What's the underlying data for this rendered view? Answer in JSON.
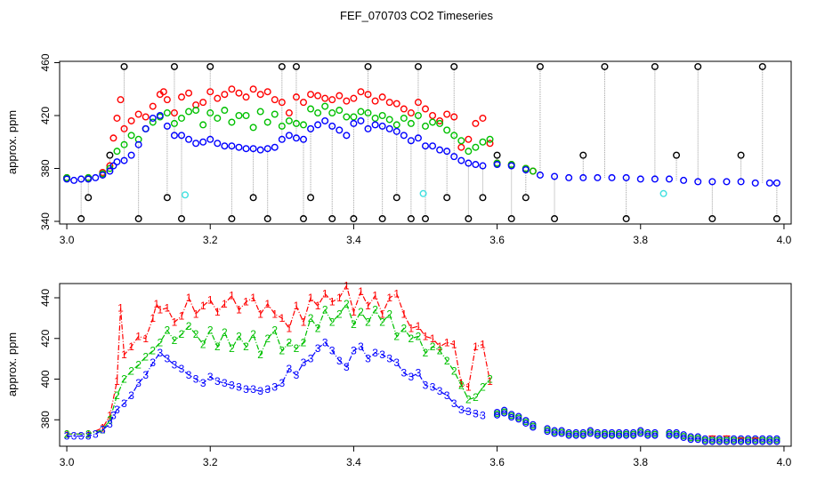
{
  "figure_title": "FEF_070703  CO2 Timeseries",
  "colors": {
    "red": "#ff0000",
    "green": "#00c000",
    "blue": "#0000ff",
    "black": "#000000",
    "cyan": "#40e0e0",
    "drop": "#a0a0a0"
  },
  "chart_data": [
    {
      "type": "scatter",
      "panel": "top",
      "title": "",
      "xlabel": "",
      "ylabel": "approx. ppm",
      "xlim": [
        2.99,
        4.01
      ],
      "ylim": [
        338,
        461
      ],
      "xticks": [
        "3.0",
        "3.2",
        "3.4",
        "3.6",
        "3.8",
        "4.0"
      ],
      "yticks": [
        "340",
        "380",
        "420",
        "460"
      ],
      "description": "Open-circle samples per channel; grey dotted vertical drop lines join black spike samples to the series",
      "series": [
        {
          "name": "red",
          "color": "red",
          "x": [
            3.0,
            3.03,
            3.05,
            3.06,
            3.065,
            3.07,
            3.075,
            3.08,
            3.09,
            3.1,
            3.11,
            3.12,
            3.13,
            3.135,
            3.14,
            3.15,
            3.16,
            3.17,
            3.18,
            3.19,
            3.2,
            3.21,
            3.22,
            3.23,
            3.24,
            3.25,
            3.26,
            3.27,
            3.28,
            3.29,
            3.3,
            3.31,
            3.32,
            3.33,
            3.34,
            3.35,
            3.36,
            3.37,
            3.38,
            3.39,
            3.4,
            3.41,
            3.42,
            3.43,
            3.44,
            3.45,
            3.46,
            3.47,
            3.48,
            3.49,
            3.5,
            3.51,
            3.52,
            3.53,
            3.54,
            3.55,
            3.56,
            3.57,
            3.58,
            3.59,
            3.6,
            3.62,
            3.64,
            3.65
          ],
          "y": [
            373,
            373,
            377,
            382,
            403,
            418,
            432,
            410,
            416,
            421,
            419,
            427,
            436,
            438,
            432,
            422,
            434,
            437,
            428,
            430,
            438,
            433,
            436,
            440,
            437,
            434,
            440,
            436,
            438,
            432,
            430,
            422,
            434,
            430,
            436,
            435,
            433,
            432,
            435,
            431,
            433,
            438,
            436,
            431,
            434,
            430,
            429,
            425,
            422,
            430,
            425,
            420,
            416,
            421,
            419,
            396,
            402,
            414,
            418,
            399,
            384,
            383,
            380,
            378
          ]
        },
        {
          "name": "green",
          "color": "green",
          "x": [
            3.0,
            3.03,
            3.05,
            3.06,
            3.07,
            3.08,
            3.09,
            3.1,
            3.11,
            3.12,
            3.13,
            3.14,
            3.15,
            3.16,
            3.17,
            3.18,
            3.19,
            3.2,
            3.21,
            3.22,
            3.23,
            3.24,
            3.25,
            3.26,
            3.27,
            3.28,
            3.29,
            3.3,
            3.31,
            3.32,
            3.33,
            3.34,
            3.35,
            3.36,
            3.37,
            3.38,
            3.39,
            3.4,
            3.41,
            3.42,
            3.43,
            3.44,
            3.45,
            3.46,
            3.47,
            3.48,
            3.49,
            3.5,
            3.51,
            3.52,
            3.53,
            3.54,
            3.55,
            3.56,
            3.57,
            3.58,
            3.59,
            3.6,
            3.62,
            3.64,
            3.65
          ],
          "y": [
            373,
            373,
            376,
            380,
            393,
            398,
            405,
            402,
            410,
            415,
            419,
            422,
            414,
            418,
            423,
            424,
            413,
            422,
            418,
            424,
            415,
            420,
            420,
            411,
            423,
            415,
            421,
            412,
            416,
            414,
            413,
            425,
            422,
            427,
            422,
            424,
            419,
            419,
            423,
            422,
            418,
            420,
            417,
            413,
            418,
            414,
            420,
            412,
            415,
            414,
            409,
            405,
            401,
            393,
            396,
            400,
            402,
            384,
            383,
            380,
            378
          ]
        },
        {
          "name": "blue",
          "color": "blue",
          "x": [
            3.0,
            3.01,
            3.02,
            3.03,
            3.04,
            3.05,
            3.06,
            3.065,
            3.07,
            3.08,
            3.09,
            3.1,
            3.11,
            3.12,
            3.13,
            3.14,
            3.15,
            3.16,
            3.17,
            3.18,
            3.19,
            3.2,
            3.21,
            3.22,
            3.23,
            3.24,
            3.25,
            3.26,
            3.27,
            3.28,
            3.29,
            3.3,
            3.31,
            3.32,
            3.33,
            3.34,
            3.35,
            3.36,
            3.37,
            3.38,
            3.39,
            3.4,
            3.41,
            3.42,
            3.43,
            3.44,
            3.45,
            3.46,
            3.47,
            3.48,
            3.49,
            3.5,
            3.51,
            3.52,
            3.53,
            3.54,
            3.55,
            3.56,
            3.57,
            3.58,
            3.6,
            3.62,
            3.64,
            3.66,
            3.68,
            3.7,
            3.72,
            3.74,
            3.76,
            3.78,
            3.8,
            3.82,
            3.84,
            3.86,
            3.88,
            3.9,
            3.92,
            3.94,
            3.96,
            3.98,
            3.99
          ],
          "y": [
            372,
            371,
            372,
            372,
            373,
            375,
            378,
            382,
            385,
            386,
            390,
            398,
            410,
            418,
            420,
            412,
            405,
            405,
            402,
            399,
            400,
            402,
            399,
            397,
            397,
            396,
            395,
            395,
            394,
            395,
            396,
            402,
            405,
            403,
            402,
            410,
            413,
            416,
            412,
            409,
            405,
            414,
            416,
            410,
            413,
            412,
            410,
            408,
            405,
            401,
            403,
            397,
            397,
            394,
            393,
            389,
            386,
            384,
            383,
            382,
            383,
            382,
            379,
            375,
            374,
            373,
            373,
            373,
            373,
            373,
            372,
            372,
            372,
            371,
            370,
            370,
            370,
            370,
            369,
            369,
            369
          ]
        },
        {
          "name": "black",
          "color": "black",
          "x": [
            3.02,
            3.03,
            3.06,
            3.08,
            3.1,
            3.14,
            3.15,
            3.16,
            3.2,
            3.23,
            3.26,
            3.28,
            3.3,
            3.32,
            3.33,
            3.34,
            3.37,
            3.4,
            3.42,
            3.44,
            3.46,
            3.48,
            3.49,
            3.5,
            3.53,
            3.54,
            3.56,
            3.58,
            3.6,
            3.62,
            3.64,
            3.66,
            3.68,
            3.72,
            3.75,
            3.78,
            3.82,
            3.85,
            3.88,
            3.9,
            3.94,
            3.97,
            3.99
          ],
          "y": [
            342,
            358,
            390,
            457,
            342,
            358,
            457,
            342,
            457,
            342,
            358,
            342,
            457,
            457,
            342,
            358,
            342,
            342,
            457,
            342,
            358,
            342,
            457,
            342,
            358,
            457,
            342,
            358,
            390,
            342,
            358,
            457,
            342,
            390,
            457,
            342,
            457,
            390,
            457,
            342,
            390,
            457,
            342
          ]
        },
        {
          "name": "cyan",
          "color": "cyan",
          "x": [
            3.165,
            3.497,
            3.832
          ],
          "y": [
            360,
            361,
            361
          ]
        }
      ]
    },
    {
      "type": "line",
      "panel": "bottom",
      "title": "",
      "xlabel": "",
      "ylabel": "approx. ppm",
      "xlim": [
        2.99,
        4.01
      ],
      "ylim": [
        367,
        447
      ],
      "xticks": [
        "3.0",
        "3.2",
        "3.4",
        "3.6",
        "3.8",
        "4.0"
      ],
      "yticks": [
        "380",
        "400",
        "420",
        "440"
      ],
      "description": "Dash-dot lines with digit markers 1, 2, 3 per channel and open circles at plateau samples",
      "series": [
        {
          "name": "1",
          "color": "red",
          "marker": "1",
          "x": [
            3.0,
            3.03,
            3.05,
            3.06,
            3.07,
            3.075,
            3.08,
            3.09,
            3.1,
            3.11,
            3.12,
            3.125,
            3.13,
            3.14,
            3.15,
            3.16,
            3.17,
            3.18,
            3.19,
            3.2,
            3.21,
            3.22,
            3.23,
            3.24,
            3.25,
            3.26,
            3.27,
            3.28,
            3.29,
            3.3,
            3.31,
            3.32,
            3.33,
            3.34,
            3.35,
            3.36,
            3.37,
            3.38,
            3.39,
            3.4,
            3.41,
            3.42,
            3.43,
            3.44,
            3.45,
            3.46,
            3.47,
            3.48,
            3.49,
            3.5,
            3.51,
            3.52,
            3.53,
            3.54,
            3.55,
            3.56,
            3.57,
            3.58,
            3.59
          ],
          "y": [
            373,
            373,
            376,
            382,
            399,
            435,
            412,
            416,
            421,
            420,
            430,
            437,
            434,
            435,
            428,
            431,
            440,
            432,
            436,
            439,
            433,
            437,
            441,
            434,
            438,
            440,
            432,
            437,
            432,
            430,
            425,
            436,
            428,
            440,
            436,
            442,
            438,
            440,
            446,
            433,
            443,
            436,
            441,
            432,
            440,
            442,
            432,
            425,
            426,
            421,
            420,
            416,
            418,
            417,
            398,
            396,
            416,
            417,
            399
          ]
        },
        {
          "name": "2",
          "color": "green",
          "marker": "2",
          "x": [
            3.0,
            3.03,
            3.05,
            3.06,
            3.07,
            3.08,
            3.09,
            3.1,
            3.11,
            3.12,
            3.13,
            3.14,
            3.15,
            3.16,
            3.17,
            3.18,
            3.19,
            3.2,
            3.21,
            3.22,
            3.23,
            3.24,
            3.25,
            3.26,
            3.27,
            3.28,
            3.29,
            3.3,
            3.31,
            3.32,
            3.33,
            3.34,
            3.35,
            3.36,
            3.37,
            3.38,
            3.39,
            3.4,
            3.41,
            3.42,
            3.43,
            3.44,
            3.45,
            3.46,
            3.47,
            3.48,
            3.49,
            3.5,
            3.51,
            3.52,
            3.53,
            3.54,
            3.55,
            3.56,
            3.57,
            3.58,
            3.59
          ],
          "y": [
            373,
            373,
            375,
            380,
            392,
            400,
            404,
            407,
            411,
            414,
            418,
            424,
            419,
            422,
            426,
            422,
            417,
            424,
            416,
            423,
            415,
            421,
            416,
            422,
            412,
            420,
            424,
            414,
            418,
            415,
            418,
            430,
            425,
            434,
            428,
            432,
            437,
            427,
            433,
            428,
            434,
            428,
            432,
            421,
            425,
            420,
            421,
            413,
            416,
            414,
            409,
            404,
            397,
            390,
            391,
            396,
            400
          ]
        },
        {
          "name": "3",
          "color": "blue",
          "marker": "3",
          "x": [
            3.0,
            3.01,
            3.02,
            3.03,
            3.04,
            3.05,
            3.06,
            3.065,
            3.07,
            3.08,
            3.09,
            3.1,
            3.11,
            3.12,
            3.13,
            3.14,
            3.15,
            3.16,
            3.17,
            3.18,
            3.19,
            3.2,
            3.21,
            3.22,
            3.23,
            3.24,
            3.25,
            3.26,
            3.27,
            3.28,
            3.29,
            3.3,
            3.31,
            3.32,
            3.33,
            3.34,
            3.35,
            3.36,
            3.37,
            3.38,
            3.39,
            3.4,
            3.41,
            3.42,
            3.43,
            3.44,
            3.45,
            3.46,
            3.47,
            3.48,
            3.49,
            3.5,
            3.51,
            3.52,
            3.53,
            3.54,
            3.55,
            3.56,
            3.57,
            3.58
          ],
          "y": [
            372,
            372,
            372,
            372,
            373,
            375,
            378,
            382,
            385,
            388,
            392,
            398,
            402,
            408,
            413,
            410,
            407,
            405,
            402,
            400,
            398,
            401,
            399,
            398,
            397,
            396,
            395,
            395,
            394,
            395,
            396,
            398,
            405,
            402,
            408,
            410,
            415,
            418,
            414,
            409,
            406,
            414,
            416,
            410,
            413,
            412,
            410,
            408,
            403,
            401,
            403,
            397,
            396,
            394,
            392,
            388,
            385,
            384,
            383,
            382
          ]
        },
        {
          "name": "plateau",
          "color": "multi",
          "marker": "o",
          "x": [
            3.6,
            3.61,
            3.62,
            3.63,
            3.64,
            3.65,
            3.67,
            3.68,
            3.69,
            3.7,
            3.71,
            3.72,
            3.73,
            3.74,
            3.75,
            3.76,
            3.77,
            3.78,
            3.79,
            3.8,
            3.81,
            3.82,
            3.84,
            3.85,
            3.86,
            3.87,
            3.88,
            3.89,
            3.9,
            3.91,
            3.92,
            3.93,
            3.94,
            3.95,
            3.96,
            3.97,
            3.98,
            3.99
          ],
          "y": [
            383,
            384,
            382,
            381,
            379,
            377,
            375,
            374,
            374,
            373,
            373,
            373,
            374,
            373,
            373,
            373,
            373,
            373,
            373,
            374,
            373,
            373,
            373,
            373,
            372,
            371,
            371,
            370,
            370,
            370,
            370,
            370,
            370,
            370,
            370,
            370,
            370,
            370
          ]
        }
      ]
    }
  ]
}
